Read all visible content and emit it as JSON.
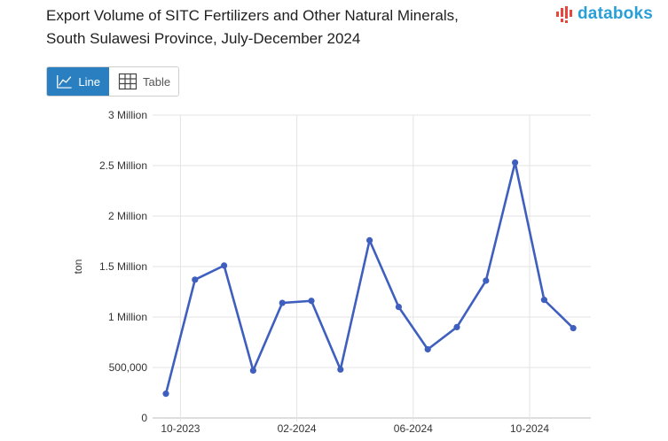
{
  "header": {
    "title_line1": "Export Volume of SITC Fertilizers and Other Natural Minerals,",
    "title_line2": "South Sulawesi Province, July-December 2024"
  },
  "logo": {
    "text": "databoks",
    "color": "#2a9fd6",
    "accent": "#e8453c"
  },
  "toggle": {
    "line_label": "Line",
    "table_label": "Table",
    "active_color": "#2a7fc1"
  },
  "chart_data": {
    "type": "line",
    "title": "Export Volume of SITC Fertilizers and Other Natural Minerals, South Sulawesi Province, July-December 2024",
    "xlabel": "",
    "ylabel": "ton",
    "ylim": [
      0,
      3000000
    ],
    "yticks": [
      {
        "value": 0,
        "label": "0"
      },
      {
        "value": 500000,
        "label": "500,000"
      },
      {
        "value": 1000000,
        "label": "1 Million"
      },
      {
        "value": 1500000,
        "label": "1.5 Million"
      },
      {
        "value": 2000000,
        "label": "2 Million"
      },
      {
        "value": 2500000,
        "label": "2.5 Million"
      },
      {
        "value": 3000000,
        "label": "3 Million"
      }
    ],
    "xticks": [
      {
        "index": 0.5,
        "label": "10-2023"
      },
      {
        "index": 4.5,
        "label": "02-2024"
      },
      {
        "index": 8.5,
        "label": "06-2024"
      },
      {
        "index": 12.5,
        "label": "10-2024"
      }
    ],
    "series": [
      {
        "name": "Export Volume",
        "color": "#3f5fbf",
        "values": [
          240000,
          1370000,
          1510000,
          470000,
          1140000,
          1160000,
          480000,
          1760000,
          1100000,
          680000,
          900000,
          1360000,
          2530000,
          1170000,
          890000
        ]
      }
    ]
  }
}
